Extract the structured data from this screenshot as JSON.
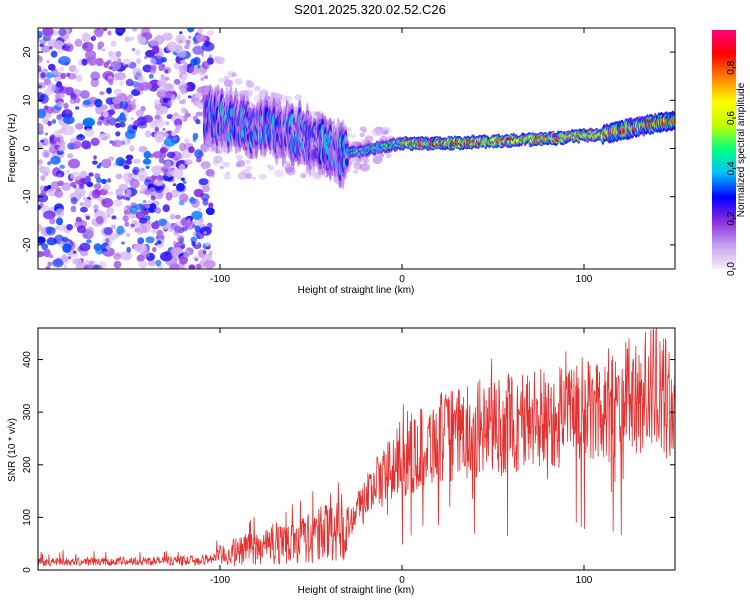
{
  "title": "S201.2025.320.02.52.C26",
  "chart_data": [
    {
      "type": "heatmap",
      "name": "spectrogram",
      "xlabel": "Height of straight line (km)",
      "ylabel": "Frequency (Hz)",
      "xlim": [
        -200,
        150
      ],
      "ylim": [
        -25,
        25
      ],
      "xticks": [
        -100,
        0,
        100
      ],
      "yticks": [
        -20,
        -10,
        0,
        10,
        20
      ],
      "colorbar": {
        "label": "Normalized spectral amplitude",
        "range": [
          0.0,
          0.95
        ],
        "ticks": [
          0.0,
          0.2,
          0.4,
          0.6,
          0.8
        ],
        "colors": [
          "#f4eefc",
          "#c8a0f0",
          "#8a2be2",
          "#0000ff",
          "#00c0ff",
          "#00ff80",
          "#c0ff00",
          "#ffff00",
          "#ff8000",
          "#ff0000",
          "#ff0080"
        ]
      },
      "ridge": {
        "description": "carrier frequency track",
        "points": [
          {
            "x": -105,
            "f": 7
          },
          {
            "x": -90,
            "f": 5
          },
          {
            "x": -75,
            "f": 4
          },
          {
            "x": -60,
            "f": 3
          },
          {
            "x": -45,
            "f": 1
          },
          {
            "x": -35,
            "f": -1
          },
          {
            "x": -25,
            "f": -0.8
          },
          {
            "x": -10,
            "f": 0.5
          },
          {
            "x": 0,
            "f": 1
          },
          {
            "x": 20,
            "f": 1
          },
          {
            "x": 50,
            "f": 1.5
          },
          {
            "x": 80,
            "f": 2
          },
          {
            "x": 110,
            "f": 3
          },
          {
            "x": 130,
            "f": 4.5
          },
          {
            "x": 150,
            "f": 6
          }
        ]
      }
    },
    {
      "type": "line",
      "name": "snr",
      "xlabel": "Height of straight line (km)",
      "ylabel": "SNR (10 * v/v)",
      "xlim": [
        -200,
        150
      ],
      "ylim": [
        0,
        460
      ],
      "xticks": [
        -100,
        0,
        100
      ],
      "yticks": [
        0,
        100,
        200,
        300,
        400
      ],
      "color": "#e53030",
      "envelope": [
        {
          "x": -200,
          "y": 15
        },
        {
          "x": -110,
          "y": 18
        },
        {
          "x": -90,
          "y": 35
        },
        {
          "x": -70,
          "y": 50
        },
        {
          "x": -50,
          "y": 60
        },
        {
          "x": -30,
          "y": 90
        },
        {
          "x": -15,
          "y": 160
        },
        {
          "x": 0,
          "y": 210
        },
        {
          "x": 20,
          "y": 250
        },
        {
          "x": 50,
          "y": 270
        },
        {
          "x": 80,
          "y": 290
        },
        {
          "x": 100,
          "y": 300
        },
        {
          "x": 120,
          "y": 320
        },
        {
          "x": 140,
          "y": 350
        },
        {
          "x": 150,
          "y": 300
        }
      ]
    }
  ]
}
